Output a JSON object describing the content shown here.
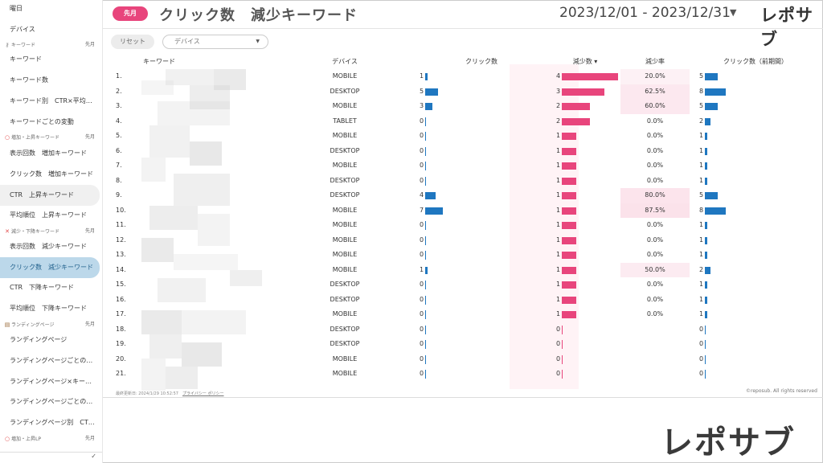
{
  "sidebar": {
    "items": [
      {
        "label": "曜日"
      },
      {
        "label": "デバイス"
      },
      {
        "label": "キーワード"
      },
      {
        "label": "キーワード数"
      },
      {
        "label": "キーワード別　CTR×平均…"
      },
      {
        "label": "キーワードごとの変動"
      },
      {
        "label": "表示回数　増加キーワード"
      },
      {
        "label": "クリック数　増加キーワード"
      },
      {
        "label": "CTR　上昇キーワード"
      },
      {
        "label": "平均順位　上昇キーワード"
      },
      {
        "label": "表示回数　減少キーワード"
      },
      {
        "label": "クリック数　減少キーワード"
      },
      {
        "label": "CTR　下降キーワード"
      },
      {
        "label": "平均順位　下降キーワード"
      },
      {
        "label": "ランディングページ"
      },
      {
        "label": "ランディングページごとの…"
      },
      {
        "label": "ランディングページ×キー…"
      },
      {
        "label": "ランディングページごとの…"
      },
      {
        "label": "ランディングページ別　CT…"
      }
    ],
    "sections": [
      {
        "label": "キーワード",
        "period": "先月"
      },
      {
        "label": "増加・上昇キーワード",
        "period": "先月"
      },
      {
        "label": "減少・下降キーワード",
        "period": "先月"
      },
      {
        "label": "ランディングページ",
        "period": "先月"
      },
      {
        "label": "増加・上昇LP",
        "period": "先月"
      }
    ]
  },
  "header": {
    "period_pill": "先月",
    "title": "クリック数　減少キーワード",
    "date_range": "2023/12/01 - 2023/12/31",
    "logo": "レポサブ"
  },
  "filters": {
    "reset_label": "リセット",
    "device_placeholder": "デバイス"
  },
  "table": {
    "columns": [
      "キーワード",
      "デバイス",
      "クリック数",
      "減少数 ▾",
      "減少率",
      "クリック数（前期間）"
    ],
    "max_clicks": 8,
    "max_decrease": 4,
    "rows": [
      {
        "n": "1.",
        "device": "MOBILE",
        "clicks": 1,
        "decrease": 4,
        "rate": "20.0%",
        "prev": 5
      },
      {
        "n": "2.",
        "device": "DESKTOP",
        "clicks": 5,
        "decrease": 3,
        "rate": "62.5%",
        "prev": 8
      },
      {
        "n": "3.",
        "device": "MOBILE",
        "clicks": 3,
        "decrease": 2,
        "rate": "60.0%",
        "prev": 5
      },
      {
        "n": "4.",
        "device": "TABLET",
        "clicks": 0,
        "decrease": 2,
        "rate": "0.0%",
        "prev": 2
      },
      {
        "n": "5.",
        "device": "MOBILE",
        "clicks": 0,
        "decrease": 1,
        "rate": "0.0%",
        "prev": 1
      },
      {
        "n": "6.",
        "device": "DESKTOP",
        "clicks": 0,
        "decrease": 1,
        "rate": "0.0%",
        "prev": 1
      },
      {
        "n": "7.",
        "device": "MOBILE",
        "clicks": 0,
        "decrease": 1,
        "rate": "0.0%",
        "prev": 1
      },
      {
        "n": "8.",
        "device": "DESKTOP",
        "clicks": 0,
        "decrease": 1,
        "rate": "0.0%",
        "prev": 1
      },
      {
        "n": "9.",
        "device": "DESKTOP",
        "clicks": 4,
        "decrease": 1,
        "rate": "80.0%",
        "prev": 5
      },
      {
        "n": "10.",
        "device": "MOBILE",
        "clicks": 7,
        "decrease": 1,
        "rate": "87.5%",
        "prev": 8
      },
      {
        "n": "11.",
        "device": "MOBILE",
        "clicks": 0,
        "decrease": 1,
        "rate": "0.0%",
        "prev": 1
      },
      {
        "n": "12.",
        "device": "MOBILE",
        "clicks": 0,
        "decrease": 1,
        "rate": "0.0%",
        "prev": 1
      },
      {
        "n": "13.",
        "device": "MOBILE",
        "clicks": 0,
        "decrease": 1,
        "rate": "0.0%",
        "prev": 1
      },
      {
        "n": "14.",
        "device": "MOBILE",
        "clicks": 1,
        "decrease": 1,
        "rate": "50.0%",
        "prev": 2
      },
      {
        "n": "15.",
        "device": "DESKTOP",
        "clicks": 0,
        "decrease": 1,
        "rate": "0.0%",
        "prev": 1
      },
      {
        "n": "16.",
        "device": "DESKTOP",
        "clicks": 0,
        "decrease": 1,
        "rate": "0.0%",
        "prev": 1
      },
      {
        "n": "17.",
        "device": "MOBILE",
        "clicks": 0,
        "decrease": 1,
        "rate": "0.0%",
        "prev": 1
      },
      {
        "n": "18.",
        "device": "DESKTOP",
        "clicks": 0,
        "decrease": 0,
        "rate": "",
        "prev": 0
      },
      {
        "n": "19.",
        "device": "DESKTOP",
        "clicks": 0,
        "decrease": 0,
        "rate": "",
        "prev": 0
      },
      {
        "n": "20.",
        "device": "MOBILE",
        "clicks": 0,
        "decrease": 0,
        "rate": "",
        "prev": 0
      },
      {
        "n": "21.",
        "device": "MOBILE",
        "clicks": 0,
        "decrease": 0,
        "rate": "",
        "prev": 0
      }
    ]
  },
  "footer": {
    "updated": "最終更新日: 2024/1/29 10:52:57",
    "privacy": "プライバシー ポリシー",
    "copyright": "©reposub. All rights reserved"
  },
  "watermark_logo": "レポサブ",
  "colors": {
    "accent_pink": "#e8457c",
    "bar_blue": "#1f77c0",
    "active_nav": "#bcd8ea"
  }
}
